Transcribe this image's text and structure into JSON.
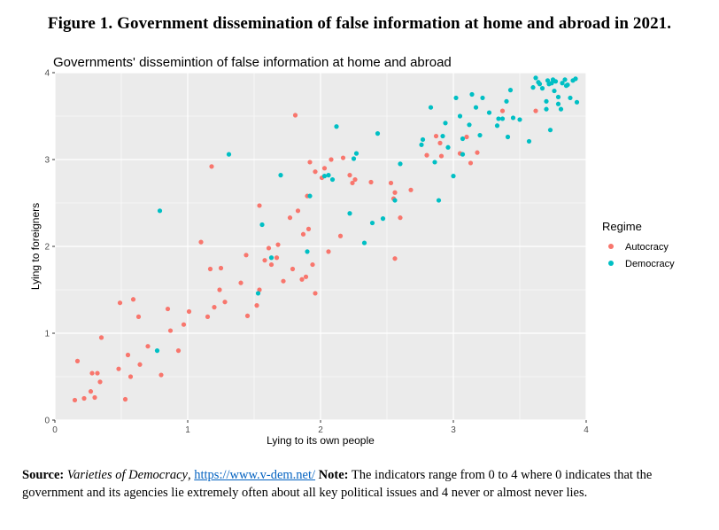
{
  "figure_title": "Figure 1. Government dissemination of false information at home and abroad in 2021.",
  "source": {
    "label": "Source:",
    "dataset": "Varieties of Democracy",
    "sep": ", ",
    "url": "https://www.v-dem.net/",
    "note_label": "Note:",
    "note_text": "The indicators range from 0 to 4 where 0 indicates that the government and its agencies lie extremely often about all key political issues and 4 never or almost never lies."
  },
  "colors": {
    "Autocracy": "#F8766D",
    "Democracy": "#00BFC4",
    "panel": "#EBEBEB",
    "grid": "#FFFFFF"
  },
  "chart_data": {
    "type": "scatter",
    "title": "Governments' dissemintion of false information at home and abroad",
    "xlabel": "Lying to its own people",
    "ylabel": "Lying to foreigners",
    "xlim": [
      0,
      4
    ],
    "ylim": [
      0,
      4
    ],
    "xticks": [
      0,
      1,
      2,
      3,
      4
    ],
    "yticks": [
      0,
      1,
      2,
      3,
      4
    ],
    "grid": true,
    "legend": {
      "title": "Regime",
      "position": "right"
    },
    "series": [
      {
        "name": "Autocracy",
        "points": [
          [
            0.15,
            0.23
          ],
          [
            0.17,
            0.68
          ],
          [
            0.22,
            0.25
          ],
          [
            0.27,
            0.33
          ],
          [
            0.28,
            0.54
          ],
          [
            0.3,
            0.26
          ],
          [
            0.32,
            0.54
          ],
          [
            0.34,
            0.44
          ],
          [
            0.35,
            0.95
          ],
          [
            0.48,
            0.59
          ],
          [
            0.49,
            1.35
          ],
          [
            0.53,
            0.24
          ],
          [
            0.55,
            0.75
          ],
          [
            0.57,
            0.5
          ],
          [
            0.59,
            1.39
          ],
          [
            0.63,
            1.19
          ],
          [
            0.64,
            0.64
          ],
          [
            0.7,
            0.85
          ],
          [
            0.8,
            0.52
          ],
          [
            0.85,
            1.28
          ],
          [
            0.87,
            1.03
          ],
          [
            0.93,
            0.8
          ],
          [
            0.97,
            1.1
          ],
          [
            1.01,
            1.25
          ],
          [
            1.1,
            2.05
          ],
          [
            1.15,
            1.19
          ],
          [
            1.17,
            1.74
          ],
          [
            1.18,
            2.92
          ],
          [
            1.2,
            1.3
          ],
          [
            1.24,
            1.5
          ],
          [
            1.25,
            1.75
          ],
          [
            1.28,
            1.36
          ],
          [
            1.4,
            1.58
          ],
          [
            1.44,
            1.9
          ],
          [
            1.45,
            1.2
          ],
          [
            1.52,
            1.32
          ],
          [
            1.54,
            1.5
          ],
          [
            1.54,
            2.47
          ],
          [
            1.58,
            1.84
          ],
          [
            1.61,
            1.98
          ],
          [
            1.63,
            1.79
          ],
          [
            1.67,
            1.87
          ],
          [
            1.68,
            2.02
          ],
          [
            1.72,
            1.6
          ],
          [
            1.77,
            2.33
          ],
          [
            1.79,
            1.74
          ],
          [
            1.81,
            3.51
          ],
          [
            1.83,
            2.41
          ],
          [
            1.86,
            1.62
          ],
          [
            1.87,
            2.14
          ],
          [
            1.89,
            1.65
          ],
          [
            1.9,
            2.58
          ],
          [
            1.91,
            2.2
          ],
          [
            1.92,
            2.97
          ],
          [
            1.94,
            1.79
          ],
          [
            1.96,
            2.86
          ],
          [
            1.96,
            1.46
          ],
          [
            2.01,
            2.79
          ],
          [
            2.03,
            2.9
          ],
          [
            2.06,
            1.94
          ],
          [
            2.08,
            3.0
          ],
          [
            2.15,
            2.12
          ],
          [
            2.17,
            3.02
          ],
          [
            2.22,
            2.82
          ],
          [
            2.24,
            2.73
          ],
          [
            2.26,
            2.77
          ],
          [
            2.38,
            2.74
          ],
          [
            2.53,
            2.73
          ],
          [
            2.55,
            2.55
          ],
          [
            2.56,
            2.62
          ],
          [
            2.56,
            1.86
          ],
          [
            2.6,
            2.33
          ],
          [
            2.68,
            2.65
          ],
          [
            2.8,
            3.05
          ],
          [
            2.87,
            3.27
          ],
          [
            2.9,
            3.19
          ],
          [
            2.91,
            3.04
          ],
          [
            3.05,
            3.07
          ],
          [
            3.1,
            3.26
          ],
          [
            3.13,
            2.96
          ],
          [
            3.18,
            3.08
          ],
          [
            3.37,
            3.56
          ],
          [
            3.62,
            3.56
          ]
        ]
      },
      {
        "name": "Democracy",
        "points": [
          [
            0.77,
            0.8
          ],
          [
            0.79,
            2.41
          ],
          [
            1.31,
            3.06
          ],
          [
            1.53,
            1.46
          ],
          [
            1.56,
            2.25
          ],
          [
            1.63,
            1.87
          ],
          [
            1.7,
            2.82
          ],
          [
            1.9,
            1.94
          ],
          [
            1.92,
            2.58
          ],
          [
            2.03,
            2.81
          ],
          [
            2.06,
            2.82
          ],
          [
            2.09,
            2.77
          ],
          [
            2.12,
            3.38
          ],
          [
            2.22,
            2.38
          ],
          [
            2.25,
            3.01
          ],
          [
            2.27,
            3.07
          ],
          [
            2.33,
            2.04
          ],
          [
            2.39,
            2.27
          ],
          [
            2.43,
            3.3
          ],
          [
            2.47,
            2.32
          ],
          [
            2.56,
            2.53
          ],
          [
            2.6,
            2.95
          ],
          [
            2.76,
            3.17
          ],
          [
            2.77,
            3.23
          ],
          [
            2.83,
            3.6
          ],
          [
            2.86,
            2.97
          ],
          [
            2.89,
            2.53
          ],
          [
            2.92,
            3.27
          ],
          [
            2.94,
            3.42
          ],
          [
            2.96,
            3.14
          ],
          [
            3.0,
            2.81
          ],
          [
            3.02,
            3.71
          ],
          [
            3.05,
            3.5
          ],
          [
            3.07,
            3.06
          ],
          [
            3.07,
            3.24
          ],
          [
            3.12,
            3.4
          ],
          [
            3.14,
            3.75
          ],
          [
            3.17,
            3.6
          ],
          [
            3.2,
            3.28
          ],
          [
            3.22,
            3.71
          ],
          [
            3.27,
            3.54
          ],
          [
            3.33,
            3.39
          ],
          [
            3.34,
            3.47
          ],
          [
            3.37,
            3.47
          ],
          [
            3.4,
            3.67
          ],
          [
            3.41,
            3.26
          ],
          [
            3.43,
            3.8
          ],
          [
            3.45,
            3.48
          ],
          [
            3.5,
            3.46
          ],
          [
            3.57,
            3.21
          ],
          [
            3.6,
            3.83
          ],
          [
            3.62,
            3.94
          ],
          [
            3.64,
            3.89
          ],
          [
            3.65,
            3.87
          ],
          [
            3.67,
            3.82
          ],
          [
            3.7,
            3.67
          ],
          [
            3.7,
            3.58
          ],
          [
            3.71,
            3.91
          ],
          [
            3.72,
            3.87
          ],
          [
            3.73,
            3.34
          ],
          [
            3.74,
            3.88
          ],
          [
            3.75,
            3.92
          ],
          [
            3.76,
            3.79
          ],
          [
            3.77,
            3.9
          ],
          [
            3.79,
            3.72
          ],
          [
            3.79,
            3.64
          ],
          [
            3.81,
            3.58
          ],
          [
            3.82,
            3.88
          ],
          [
            3.84,
            3.92
          ],
          [
            3.85,
            3.85
          ],
          [
            3.86,
            3.86
          ],
          [
            3.88,
            3.71
          ],
          [
            3.9,
            3.91
          ],
          [
            3.92,
            3.93
          ],
          [
            3.93,
            3.66
          ]
        ]
      }
    ]
  }
}
